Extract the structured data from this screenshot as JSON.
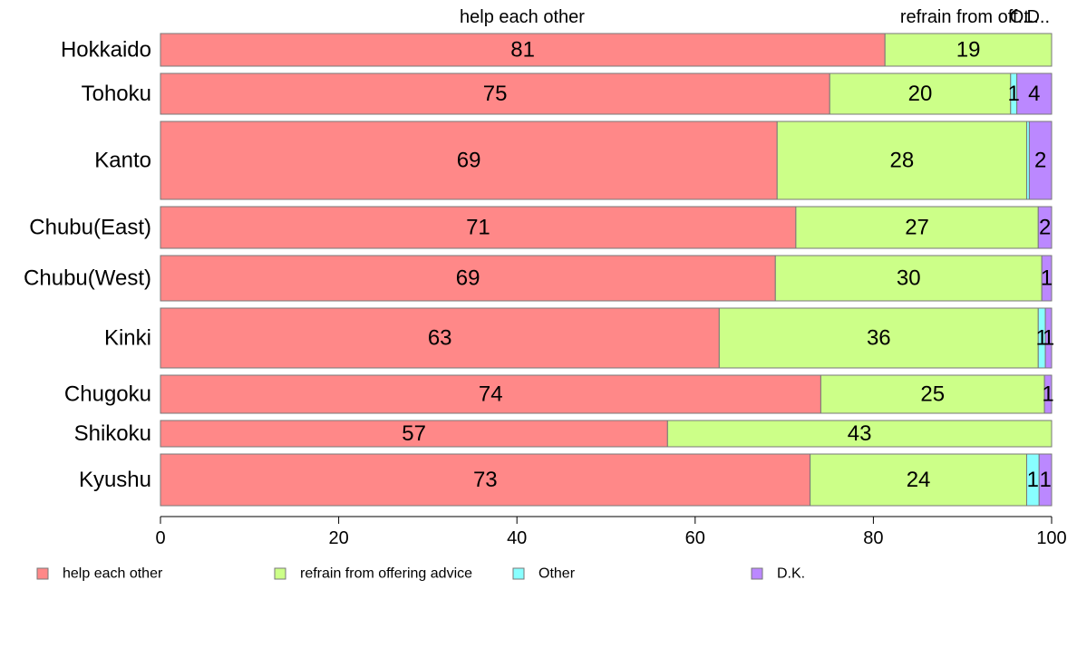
{
  "chart_data": {
    "type": "bar",
    "orientation": "horizontal",
    "stacked": true,
    "categories": [
      "Hokkaido",
      "Tohoku",
      "Kanto",
      "Chubu(East)",
      "Chubu(West)",
      "Kinki",
      "Chugoku",
      "Shikoku",
      "Kyushu"
    ],
    "series": [
      {
        "name": "help each other",
        "color": "#ff8888",
        "values": [
          81.3,
          75.1,
          69.2,
          71.3,
          69.0,
          62.7,
          74.1,
          56.9,
          72.9
        ],
        "labels": [
          "81",
          "75",
          "69",
          "71",
          "69",
          "63",
          "74",
          "57",
          "73"
        ]
      },
      {
        "name": "refrain from offering advice",
        "color": "#ccff88",
        "values": [
          18.7,
          20.3,
          28.0,
          27.2,
          29.9,
          35.8,
          25.1,
          43.1,
          24.3
        ],
        "labels": [
          "19",
          "20",
          "28",
          "27",
          "30",
          "36",
          "25",
          "43",
          "24"
        ]
      },
      {
        "name": "Other",
        "color": "#88ffff",
        "values": [
          0,
          0.7,
          0.3,
          0,
          0,
          0.8,
          0,
          0,
          1.4
        ],
        "labels": [
          "",
          "1",
          "",
          "",
          "",
          "1",
          "",
          "",
          "1"
        ]
      },
      {
        "name": "D.K.",
        "color": "#bb88ff",
        "values": [
          0,
          3.9,
          2.5,
          1.5,
          1.1,
          0.7,
          0.8,
          0,
          1.4
        ],
        "labels": [
          "",
          "4",
          "2",
          "2",
          "1",
          "1",
          "1",
          "",
          "1"
        ]
      }
    ],
    "top_labels": [
      "help each other",
      "refrain from off...",
      "Ot..",
      "D.."
    ],
    "xlim": [
      0,
      100
    ],
    "xticks": [
      "0",
      "20",
      "40",
      "60",
      "80",
      "100"
    ],
    "legend_position": "bottom",
    "grid": false
  }
}
